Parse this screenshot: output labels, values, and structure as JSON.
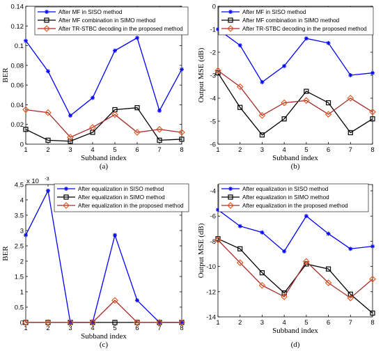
{
  "colors": {
    "siso": "#0000ff",
    "simo": "#000000",
    "proposed_line": "#a52a2a",
    "proposed_marker": "#e55a1e",
    "axis": "#000000"
  },
  "chart_data": [
    {
      "id": "a",
      "type": "line",
      "caption": "(a)",
      "xlabel": "Subband index",
      "ylabel": "BER",
      "xlim": [
        1,
        8
      ],
      "ylim": [
        0,
        0.14
      ],
      "xticks": [
        1,
        2,
        3,
        4,
        5,
        6,
        7,
        8
      ],
      "yticks": [
        0,
        0.02,
        0.04,
        0.06,
        0.08,
        0.1,
        0.12,
        0.14
      ],
      "ytick_labels": [
        "0",
        "0.02",
        "0.04",
        "0.06",
        "0.08",
        "0.1",
        "0.12",
        "0.14"
      ],
      "legend": "top-left",
      "x": [
        1,
        2,
        3,
        4,
        5,
        6,
        7,
        8
      ],
      "series": [
        {
          "name": "After MF in SISO method",
          "marker": "star",
          "style": "siso",
          "values": [
            0.105,
            0.074,
            0.029,
            0.047,
            0.095,
            0.108,
            0.034,
            0.076
          ]
        },
        {
          "name": "After MF combination in SIMO method",
          "marker": "square",
          "style": "simo",
          "values": [
            0.015,
            0.004,
            0.003,
            0.012,
            0.035,
            0.037,
            0.004,
            0.005
          ]
        },
        {
          "name": "After TR-STBC decoding in the proposed method",
          "marker": "diamond",
          "style": "proposed",
          "values": [
            0.035,
            0.032,
            0.007,
            0.017,
            0.03,
            0.012,
            0.015,
            0.012
          ]
        }
      ]
    },
    {
      "id": "b",
      "type": "line",
      "caption": "(b)",
      "xlabel": "Subband index",
      "ylabel": "Output MSE (dB)",
      "xlim": [
        1,
        8
      ],
      "ylim": [
        -6,
        0
      ],
      "xticks": [
        1,
        2,
        3,
        4,
        5,
        6,
        7,
        8
      ],
      "yticks": [
        -6,
        -5,
        -4,
        -3,
        -2,
        -1,
        0
      ],
      "ytick_labels": [
        "-6",
        "-5",
        "-4",
        "-3",
        "-2",
        "-1",
        "0"
      ],
      "legend": "top-left",
      "x": [
        1,
        2,
        3,
        4,
        5,
        6,
        7,
        8
      ],
      "series": [
        {
          "name": "After MF in SISO method",
          "marker": "star",
          "style": "siso",
          "values": [
            -1.0,
            -1.7,
            -3.3,
            -2.6,
            -1.4,
            -1.6,
            -3.0,
            -2.9
          ]
        },
        {
          "name": "After MF combination in SIMO method",
          "marker": "square",
          "style": "simo",
          "values": [
            -2.9,
            -4.4,
            -5.6,
            -4.9,
            -3.7,
            -4.2,
            -5.5,
            -4.9
          ]
        },
        {
          "name": "After TR-STBC decoding in the proposed method",
          "marker": "diamond",
          "style": "proposed",
          "values": [
            -2.8,
            -3.5,
            -4.75,
            -4.2,
            -4.1,
            -4.7,
            -4.0,
            -4.6
          ]
        }
      ]
    },
    {
      "id": "c",
      "type": "line",
      "caption": "(c)",
      "xlabel": "Subband index",
      "ylabel": "BER",
      "multiplier": "x 10",
      "multiplier_exp": "-3",
      "xlim": [
        1,
        8
      ],
      "ylim": [
        0,
        4.5
      ],
      "xticks": [
        1,
        2,
        3,
        4,
        5,
        6,
        7,
        8
      ],
      "yticks": [
        0,
        0.5,
        1,
        1.5,
        2,
        2.5,
        3,
        3.5,
        4,
        4.5
      ],
      "ytick_labels": [
        "0",
        "0.5",
        "1",
        "1.5",
        "2",
        "2.5",
        "3",
        "3.5",
        "4",
        "4.5"
      ],
      "legend": "top-right",
      "x": [
        1,
        2,
        3,
        4,
        5,
        6,
        7,
        8
      ],
      "series": [
        {
          "name": "After equalization in SISO method",
          "marker": "star",
          "style": "siso",
          "values": [
            2.85,
            4.3,
            0,
            0,
            2.85,
            0.72,
            0,
            0
          ]
        },
        {
          "name": "After equalization in SIMO method",
          "marker": "square",
          "style": "simo",
          "values": [
            0,
            0,
            0,
            0,
            0,
            0,
            0,
            0
          ]
        },
        {
          "name": "After equalization in the proposed method",
          "marker": "diamond",
          "style": "proposed",
          "values": [
            0,
            0,
            0,
            0,
            0.72,
            0,
            0,
            0
          ]
        }
      ]
    },
    {
      "id": "d",
      "type": "line",
      "caption": "(d)",
      "xlabel": "Subband index",
      "ylabel": "Output MSE (dB)",
      "xlim": [
        1,
        8
      ],
      "ylim": [
        -14,
        -3.5
      ],
      "xticks": [
        1,
        2,
        3,
        4,
        5,
        6,
        7,
        8
      ],
      "yticks": [
        -14,
        -12,
        -10,
        -8,
        -6,
        -4
      ],
      "ytick_labels": [
        "-14",
        "-12",
        "-10",
        "-8",
        "-6",
        "-4"
      ],
      "legend": "top-left",
      "x": [
        1,
        2,
        3,
        4,
        5,
        6,
        7,
        8
      ],
      "series": [
        {
          "name": "After equalization in SISO method",
          "marker": "star",
          "style": "siso",
          "values": [
            -5.5,
            -6.8,
            -7.3,
            -8.8,
            -6.0,
            -7.4,
            -8.6,
            -8.4
          ]
        },
        {
          "name": "After equalization in SIMO method",
          "marker": "square",
          "style": "simo",
          "values": [
            -7.8,
            -8.6,
            -10.5,
            -12.1,
            -9.8,
            -10.2,
            -12.2,
            -13.7
          ]
        },
        {
          "name": "After equalization in the proposed method",
          "marker": "diamond",
          "style": "proposed",
          "values": [
            -7.9,
            -9.7,
            -11.5,
            -12.4,
            -9.6,
            -11.3,
            -12.5,
            -11.0
          ]
        }
      ]
    }
  ]
}
